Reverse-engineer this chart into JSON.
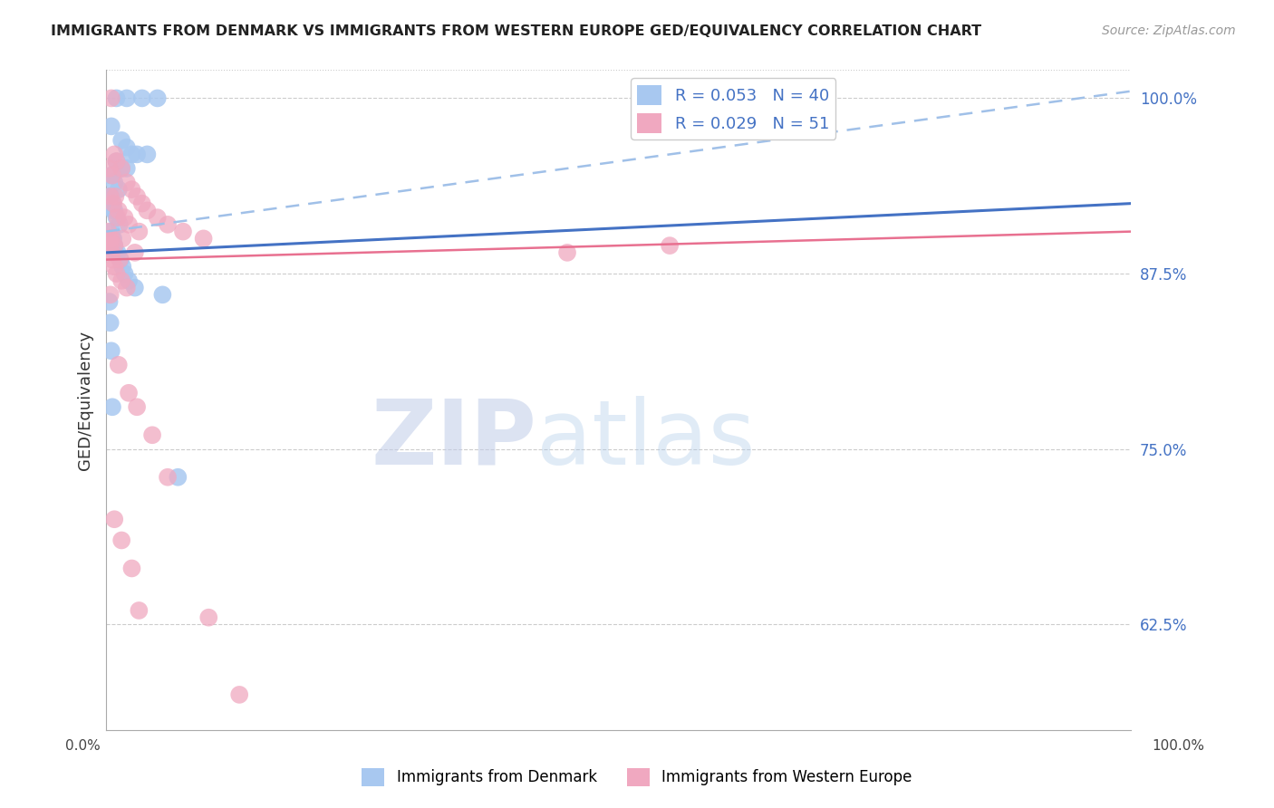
{
  "title": "IMMIGRANTS FROM DENMARK VS IMMIGRANTS FROM WESTERN EUROPE GED/EQUIVALENCY CORRELATION CHART",
  "source": "Source: ZipAtlas.com",
  "ylabel": "GED/Equivalency",
  "right_yticks": [
    62.5,
    75.0,
    87.5,
    100.0
  ],
  "right_ytick_labels": [
    "62.5%",
    "75.0%",
    "87.5%",
    "100.0%"
  ],
  "legend_entries": [
    {
      "label": "R = 0.053   N = 40",
      "color": "#a8c8f0"
    },
    {
      "label": "R = 0.029   N = 51",
      "color": "#f0a8c0"
    }
  ],
  "denmark_scatter": {
    "x": [
      1.0,
      2.0,
      3.5,
      5.0,
      0.5,
      1.5,
      2.0,
      2.5,
      3.0,
      4.0,
      1.0,
      1.5,
      2.0,
      0.5,
      0.8,
      1.2,
      0.3,
      0.4,
      0.6,
      0.7,
      0.8,
      1.0,
      1.3,
      0.5,
      0.6,
      0.7,
      0.8,
      0.9,
      1.1,
      1.4,
      1.6,
      1.8,
      2.2,
      2.8,
      5.5,
      0.3,
      0.4,
      0.5,
      0.6,
      7.0
    ],
    "y": [
      100.0,
      100.0,
      100.0,
      100.0,
      98.0,
      97.0,
      96.5,
      96.0,
      96.0,
      96.0,
      95.5,
      95.0,
      95.0,
      94.5,
      94.0,
      93.5,
      93.0,
      93.0,
      92.5,
      92.0,
      92.0,
      91.5,
      91.0,
      90.5,
      90.0,
      90.0,
      89.5,
      89.0,
      89.0,
      88.5,
      88.0,
      87.5,
      87.0,
      86.5,
      86.0,
      85.5,
      84.0,
      82.0,
      78.0,
      73.0
    ],
    "color": "#a8c8f0",
    "R": 0.053,
    "N": 40
  },
  "western_europe_scatter": {
    "x": [
      0.5,
      0.8,
      1.0,
      1.5,
      2.0,
      2.5,
      3.0,
      3.5,
      4.0,
      5.0,
      6.0,
      7.5,
      9.5,
      0.3,
      0.6,
      0.9,
      1.2,
      1.8,
      2.2,
      3.2,
      0.4,
      0.7,
      1.1,
      1.6,
      2.8,
      0.2,
      0.5,
      0.8,
      1.3,
      0.3,
      0.4,
      0.5,
      0.6,
      0.8,
      1.0,
      1.5,
      2.0,
      0.4,
      1.2,
      2.2,
      3.0,
      4.5,
      6.0,
      45.0,
      55.0,
      0.8,
      1.5,
      2.5,
      3.2,
      10.0,
      13.0
    ],
    "y": [
      100.0,
      96.0,
      95.5,
      95.0,
      94.0,
      93.5,
      93.0,
      92.5,
      92.0,
      91.5,
      91.0,
      90.5,
      90.0,
      95.0,
      94.5,
      93.0,
      92.0,
      91.5,
      91.0,
      90.5,
      93.0,
      92.5,
      91.5,
      90.0,
      89.0,
      90.5,
      90.0,
      89.5,
      88.5,
      90.0,
      89.5,
      89.0,
      88.5,
      88.0,
      87.5,
      87.0,
      86.5,
      86.0,
      81.0,
      79.0,
      78.0,
      76.0,
      73.0,
      89.0,
      89.5,
      70.0,
      68.5,
      66.5,
      63.5,
      63.0,
      57.5
    ],
    "color": "#f0a8c0",
    "R": 0.029,
    "N": 51
  },
  "denmark_trendline": {
    "x_start": 0.0,
    "y_start": 89.0,
    "x_end": 100.0,
    "y_end": 92.5,
    "color": "#4472c4",
    "style": "solid",
    "linewidth": 2.2
  },
  "denmark_dashed": {
    "x_start": 0.0,
    "y_start": 90.5,
    "x_end": 100.0,
    "y_end": 100.5,
    "color": "#a0c0e8",
    "style": "dashed",
    "linewidth": 1.8
  },
  "western_trendline": {
    "x_start": 0.0,
    "y_start": 88.5,
    "x_end": 100.0,
    "y_end": 90.5,
    "color": "#e87090",
    "style": "solid",
    "linewidth": 1.8
  },
  "background_color": "#ffffff",
  "plot_bg_color": "#ffffff",
  "grid_color": "#cccccc",
  "watermark_zip": "ZIP",
  "watermark_atlas": "atlas",
  "xlim": [
    0,
    100
  ],
  "ylim": [
    55,
    102
  ],
  "bottom_labels": [
    "Immigrants from Denmark",
    "Immigrants from Western Europe"
  ]
}
